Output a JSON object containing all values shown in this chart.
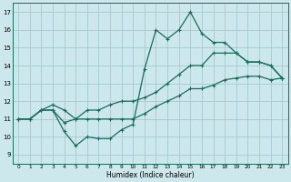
{
  "xlabel": "Humidex (Indice chaleur)",
  "bg_color": "#cce8ec",
  "grid_color": "#aacdd4",
  "line_color": "#1a6b5a",
  "xlim": [
    -0.5,
    23.5
  ],
  "ylim": [
    8.5,
    17.5
  ],
  "yticks": [
    9,
    10,
    11,
    12,
    13,
    14,
    15,
    16,
    17
  ],
  "xticks": [
    0,
    1,
    2,
    3,
    4,
    5,
    6,
    7,
    8,
    9,
    10,
    11,
    12,
    13,
    14,
    15,
    16,
    17,
    18,
    19,
    20,
    21,
    22,
    23
  ],
  "line1_x": [
    0,
    1,
    2,
    3,
    4,
    5,
    6,
    7,
    8,
    9,
    10,
    11,
    12,
    13,
    14,
    15,
    16,
    17,
    18,
    19,
    20,
    21,
    22,
    23
  ],
  "line1_y": [
    11.0,
    11.0,
    11.5,
    11.5,
    10.3,
    9.5,
    10.0,
    9.9,
    9.9,
    10.4,
    10.7,
    13.8,
    16.0,
    15.5,
    16.0,
    17.0,
    15.8,
    15.3,
    15.3,
    14.7,
    14.2,
    14.2,
    14.0,
    13.3
  ],
  "line2_x": [
    0,
    1,
    2,
    3,
    4,
    5,
    6,
    7,
    8,
    9,
    10,
    11,
    12,
    13,
    14,
    15,
    16,
    17,
    18,
    19,
    20,
    21,
    22,
    23
  ],
  "line2_y": [
    11.0,
    11.0,
    11.5,
    11.5,
    10.8,
    11.0,
    11.0,
    11.0,
    11.0,
    11.0,
    11.0,
    11.3,
    11.7,
    12.0,
    12.3,
    12.7,
    12.7,
    12.9,
    13.2,
    13.3,
    13.4,
    13.4,
    13.2,
    13.3
  ],
  "line3_x": [
    0,
    1,
    2,
    3,
    4,
    5,
    6,
    7,
    8,
    9,
    10,
    11,
    12,
    13,
    14,
    15,
    16,
    17,
    18,
    19,
    20,
    21,
    22,
    23
  ],
  "line3_y": [
    11.0,
    11.0,
    11.5,
    11.8,
    11.5,
    11.0,
    11.5,
    11.5,
    11.8,
    12.0,
    12.0,
    12.2,
    12.5,
    13.0,
    13.5,
    14.0,
    14.0,
    14.7,
    14.7,
    14.7,
    14.2,
    14.2,
    14.0,
    13.3
  ]
}
